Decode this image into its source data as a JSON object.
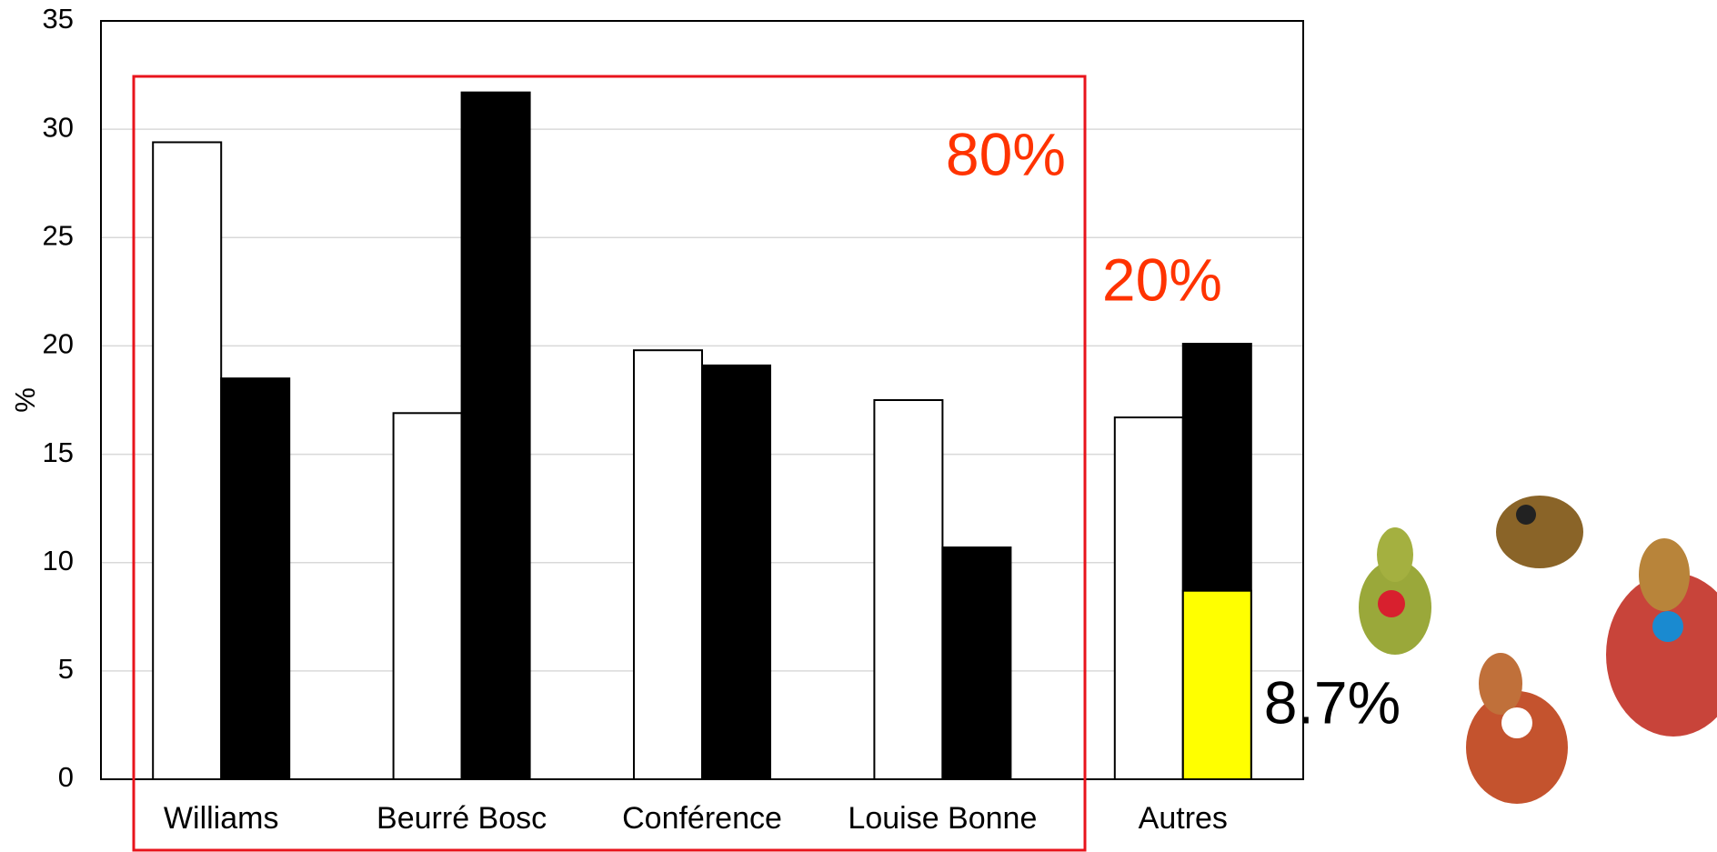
{
  "chart_data": {
    "type": "bar",
    "y_label": "%",
    "categories": [
      "Williams",
      "Beurré Bosc",
      "Conférence",
      "Louise Bonne",
      "Autres"
    ],
    "series": [
      {
        "color": "#ffffff",
        "values": [
          29.4,
          16.9,
          19.8,
          17.5,
          16.7
        ]
      },
      {
        "color": "#000000",
        "values": [
          18.5,
          31.7,
          19.1,
          10.7,
          20.1
        ]
      },
      {
        "color": "#ffff00",
        "overlay": true,
        "values": [
          null,
          null,
          null,
          null,
          8.7
        ],
        "value_labels": [
          null,
          null,
          null,
          null,
          "8.7%"
        ]
      }
    ],
    "annotations": [
      {
        "text": "80%",
        "color": "#ff3300"
      },
      {
        "text": "20%",
        "color": "#ff3300"
      }
    ],
    "ylim": [
      0,
      35
    ],
    "yticks": [
      0,
      5,
      10,
      15,
      20,
      25,
      30,
      35
    ],
    "grid": true
  }
}
